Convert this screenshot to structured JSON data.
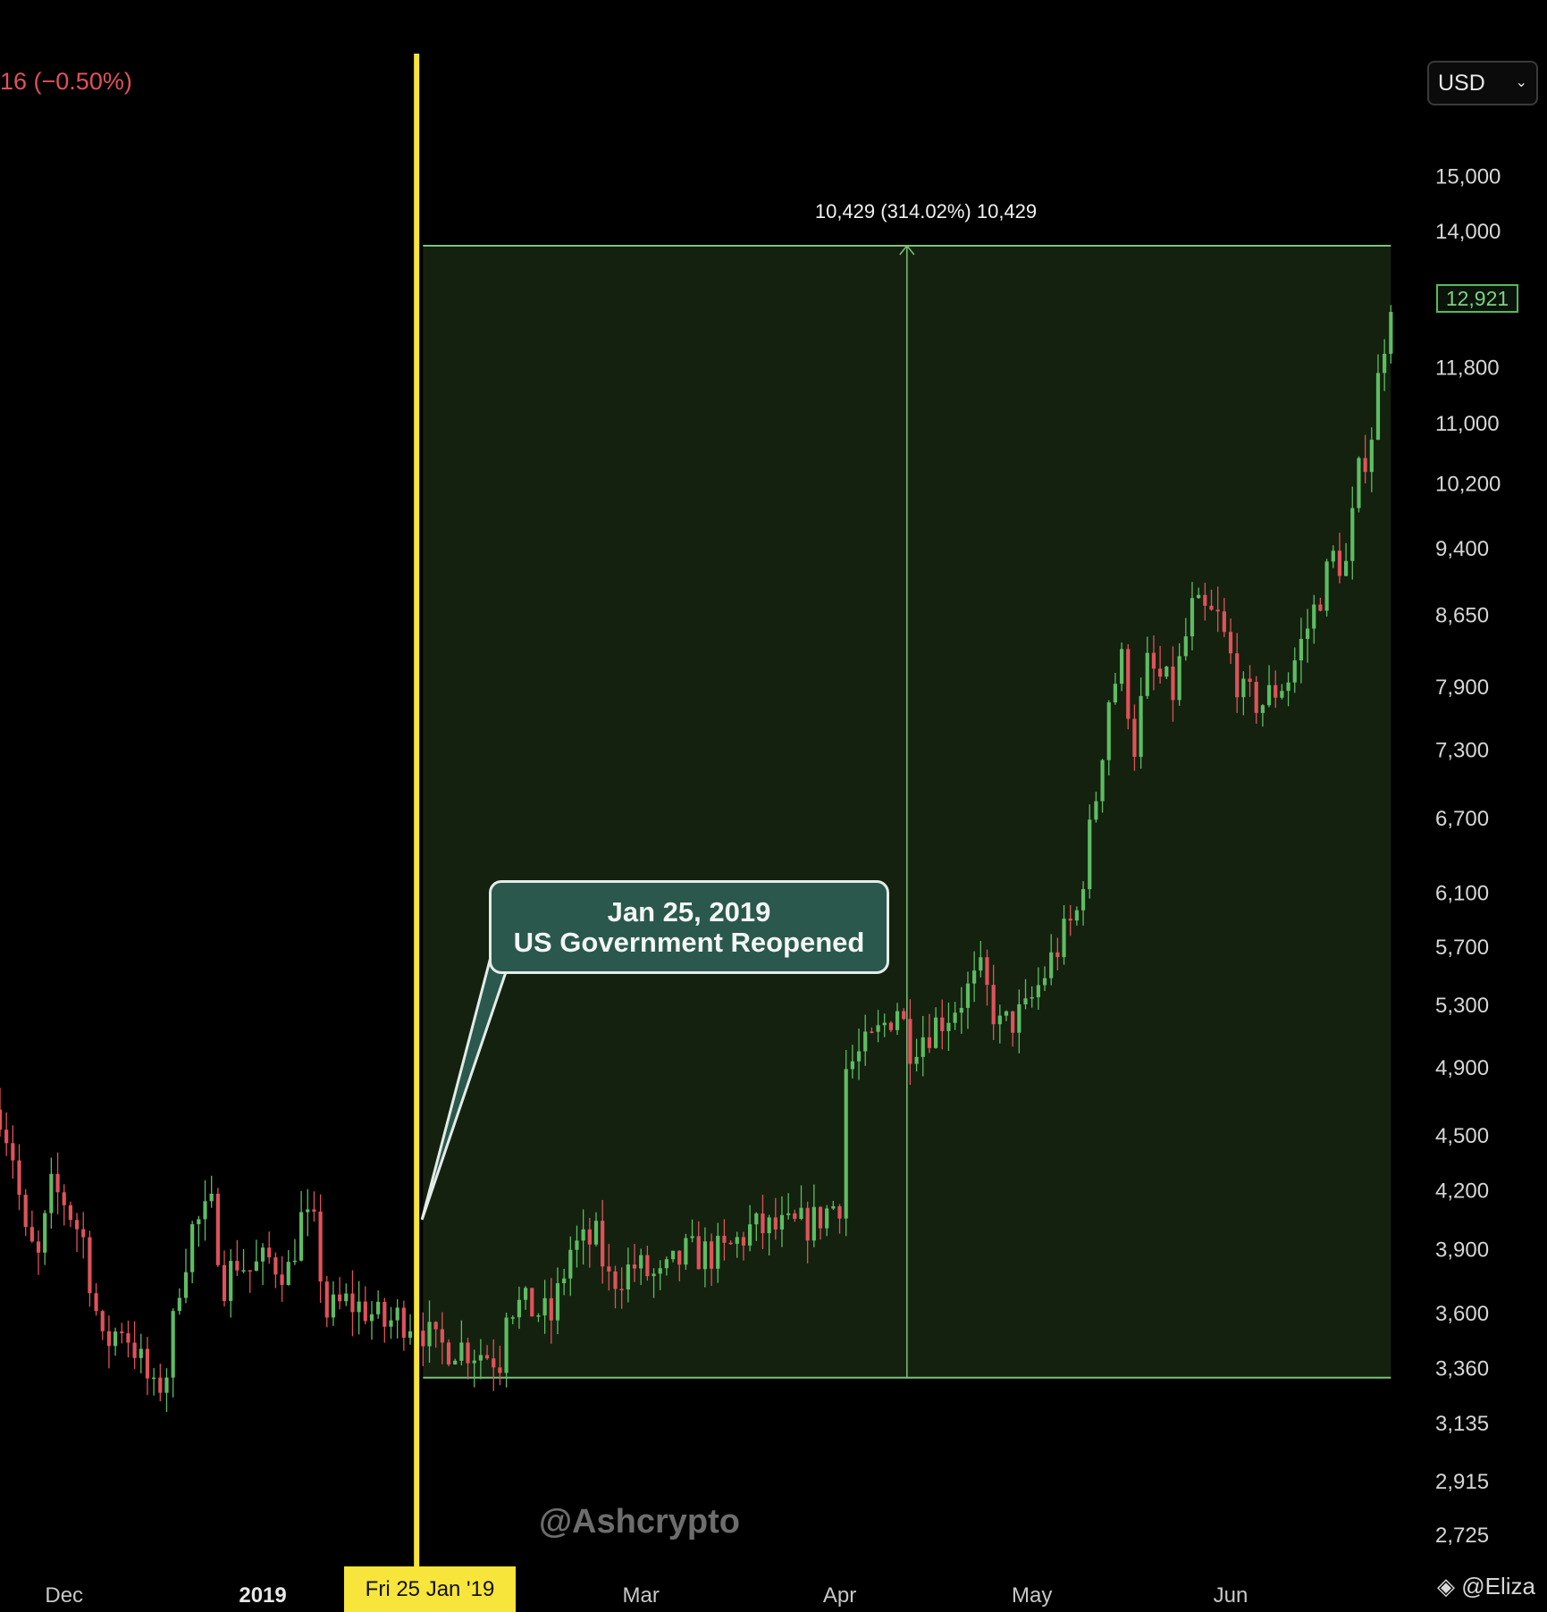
{
  "header": {
    "change_text": "16 (−0.50%)"
  },
  "currency": {
    "label": "USD"
  },
  "annotation": {
    "title": "Jan 25, 2019",
    "subtitle": "US Government Reopened",
    "anchor_date": "2019-01-25",
    "anchor_price": 4050
  },
  "measure": {
    "label": "10,429 (314.02%) 10,429",
    "start_date": "2019-01-26",
    "end_date": "2019-06-26",
    "low": 3321,
    "high": 13750
  },
  "marker": {
    "date": "2019-01-25",
    "label": "Fri 25 Jan '19"
  },
  "watermark": "@Ashcrypto",
  "credit": "@Eliza",
  "colors": {
    "up": "#5ebc63",
    "down": "#e0525a",
    "marker_line": "#f7e53b",
    "measure_fill": "#14210f",
    "measure_line": "#7cc27c",
    "callout_bg": "#2b584c"
  },
  "chart_data": {
    "type": "candlestick",
    "yscale": "log",
    "ylim": [
      2600,
      17500
    ],
    "xlim": [
      "2018-11-21",
      "2019-06-30"
    ],
    "current_price": 12921,
    "current_price_label": "12,921",
    "y_ticks": [
      {
        "value": 15000,
        "label": "15,000"
      },
      {
        "value": 14000,
        "label": "14,000"
      },
      {
        "value": 11800,
        "label": "11,800"
      },
      {
        "value": 11000,
        "label": "11,000"
      },
      {
        "value": 10200,
        "label": "10,200"
      },
      {
        "value": 9400,
        "label": "9,400"
      },
      {
        "value": 8650,
        "label": "8,650"
      },
      {
        "value": 7900,
        "label": "7,900"
      },
      {
        "value": 7300,
        "label": "7,300"
      },
      {
        "value": 6700,
        "label": "6,700"
      },
      {
        "value": 6100,
        "label": "6,100"
      },
      {
        "value": 5700,
        "label": "5,700"
      },
      {
        "value": 5300,
        "label": "5,300"
      },
      {
        "value": 4900,
        "label": "4,900"
      },
      {
        "value": 4500,
        "label": "4,500"
      },
      {
        "value": 4200,
        "label": "4,200"
      },
      {
        "value": 3900,
        "label": "3,900"
      },
      {
        "value": 3600,
        "label": "3,600"
      },
      {
        "value": 3360,
        "label": "3,360"
      },
      {
        "value": 3135,
        "label": "3,135"
      },
      {
        "value": 2915,
        "label": "2,915"
      },
      {
        "value": 2725,
        "label": "2,725"
      }
    ],
    "x_ticks": [
      {
        "date": "2018-12-01",
        "label": "Dec",
        "bold": false
      },
      {
        "date": "2019-01-01",
        "label": "2019",
        "bold": true
      },
      {
        "date": "2019-03-01",
        "label": "Mar",
        "bold": false
      },
      {
        "date": "2019-04-01",
        "label": "Apr",
        "bold": false
      },
      {
        "date": "2019-05-01",
        "label": "May",
        "bold": false
      },
      {
        "date": "2019-06-01",
        "label": "Jun",
        "bold": false
      }
    ],
    "close_path": [
      [
        "2018-11-21",
        4650
      ],
      [
        "2018-11-23",
        4400
      ],
      [
        "2018-11-25",
        3950
      ],
      [
        "2018-11-27",
        3850
      ],
      [
        "2018-11-29",
        4200
      ],
      [
        "2018-12-01",
        4150
      ],
      [
        "2018-12-04",
        3950
      ],
      [
        "2018-12-07",
        3450
      ],
      [
        "2018-12-10",
        3550
      ],
      [
        "2018-12-12",
        3450
      ],
      [
        "2018-12-15",
        3250
      ],
      [
        "2018-12-17",
        3350
      ],
      [
        "2018-12-19",
        3750
      ],
      [
        "2018-12-21",
        4000
      ],
      [
        "2018-12-24",
        4100
      ],
      [
        "2018-12-26",
        3750
      ],
      [
        "2018-12-28",
        3850
      ],
      [
        "2018-12-30",
        3800
      ],
      [
        "2019-01-02",
        3850
      ],
      [
        "2019-01-05",
        3800
      ],
      [
        "2019-01-07",
        4050
      ],
      [
        "2019-01-09",
        4000
      ],
      [
        "2019-01-11",
        3600
      ],
      [
        "2019-01-14",
        3650
      ],
      [
        "2019-01-17",
        3620
      ],
      [
        "2019-01-20",
        3550
      ],
      [
        "2019-01-22",
        3580
      ],
      [
        "2019-01-25",
        3570
      ],
      [
        "2019-01-28",
        3450
      ],
      [
        "2019-01-31",
        3460
      ],
      [
        "2019-02-04",
        3430
      ],
      [
        "2019-02-07",
        3400
      ],
      [
        "2019-02-08",
        3650
      ],
      [
        "2019-02-12",
        3620
      ],
      [
        "2019-02-15",
        3580
      ],
      [
        "2019-02-18",
        3900
      ],
      [
        "2019-02-22",
        3950
      ],
      [
        "2019-02-24",
        3750
      ],
      [
        "2019-02-28",
        3820
      ],
      [
        "2019-03-04",
        3750
      ],
      [
        "2019-03-08",
        3880
      ],
      [
        "2019-03-14",
        3880
      ],
      [
        "2019-03-18",
        4000
      ],
      [
        "2019-03-24",
        4000
      ],
      [
        "2019-03-28",
        4040
      ],
      [
        "2019-04-01",
        4150
      ],
      [
        "2019-04-02",
        4900
      ],
      [
        "2019-04-06",
        5050
      ],
      [
        "2019-04-10",
        5300
      ],
      [
        "2019-04-12",
        5050
      ],
      [
        "2019-04-18",
        5250
      ],
      [
        "2019-04-23",
        5500
      ],
      [
        "2019-04-26",
        5150
      ],
      [
        "2019-04-30",
        5250
      ],
      [
        "2019-05-05",
        5700
      ],
      [
        "2019-05-08",
        5950
      ],
      [
        "2019-05-11",
        6900
      ],
      [
        "2019-05-13",
        7800
      ],
      [
        "2019-05-15",
        8150
      ],
      [
        "2019-05-17",
        7350
      ],
      [
        "2019-05-19",
        8100
      ],
      [
        "2019-05-23",
        7850
      ],
      [
        "2019-05-26",
        8700
      ],
      [
        "2019-05-30",
        8600
      ],
      [
        "2019-06-03",
        7800
      ],
      [
        "2019-06-06",
        7750
      ],
      [
        "2019-06-10",
        8000
      ],
      [
        "2019-06-14",
        8700
      ],
      [
        "2019-06-17",
        9300
      ],
      [
        "2019-06-19",
        9200
      ],
      [
        "2019-06-21",
        10300
      ],
      [
        "2019-06-23",
        10900
      ],
      [
        "2019-06-24",
        11600
      ],
      [
        "2019-06-26",
        12921
      ]
    ]
  }
}
